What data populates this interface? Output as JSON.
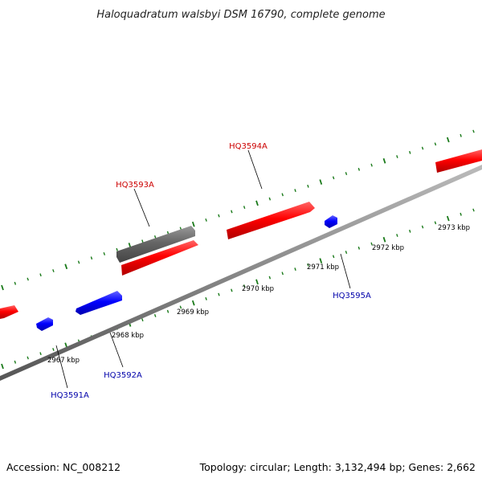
{
  "title": "Haloquadratum walsbyi DSM 16790, complete genome",
  "footer": {
    "accession": "Accession: NC_008212",
    "summary": "Topology: circular; Length: 3,132,494 bp; Genes: 2,662"
  },
  "colors": {
    "forward": "#ff0000",
    "forward_label": "#cc0000",
    "reverse": "#0000ff",
    "reverse_label": "#0000aa",
    "other": "#666666",
    "backbone": "#888888",
    "ticks": "#1a7a1a",
    "leader": "#000000"
  },
  "scale": {
    "unit": "kbp",
    "tick_labels": [
      "2967 kbp",
      "2968 kbp",
      "2969 kbp",
      "2970 kbp",
      "2971 kbp",
      "2972 kbp",
      "2973 kbp"
    ]
  },
  "genes": {
    "labeled": [
      {
        "id": "HQ3591A",
        "strand": "reverse"
      },
      {
        "id": "HQ3592A",
        "strand": "reverse"
      },
      {
        "id": "HQ3593A",
        "strand": "forward"
      },
      {
        "id": "HQ3594A",
        "strand": "forward"
      },
      {
        "id": "HQ3595A",
        "strand": "reverse"
      }
    ]
  }
}
